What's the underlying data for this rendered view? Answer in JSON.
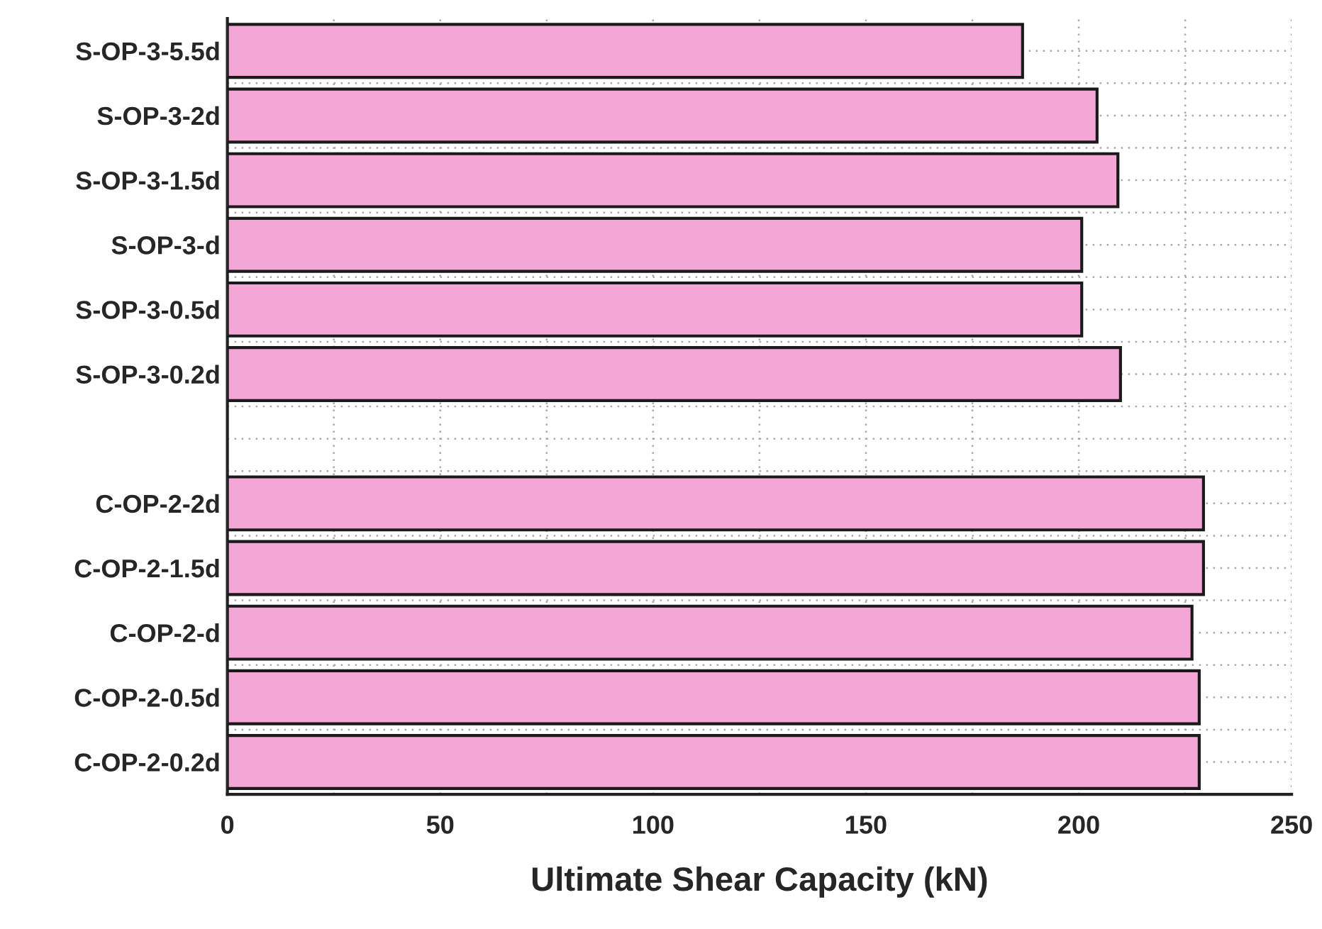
{
  "chart_data": {
    "type": "bar",
    "orientation": "horizontal",
    "xlabel": "Ultimate Shear Capacity (kN)",
    "categories": [
      "S-OP-3-5.5d",
      "S-OP-3-2d",
      "S-OP-3-1.5d",
      "S-OP-3-d",
      "S-OP-3-0.5d",
      "S-OP-3-0.2d",
      null,
      "C-OP-2-2d",
      "C-OP-2-1.5d",
      "C-OP-2-d",
      "C-OP-2-0.5d",
      "C-OP-2-0.2d"
    ],
    "values": [
      186.8,
      204.3,
      209.2,
      200.7,
      200.7,
      209.8,
      null,
      229.3,
      229.3,
      226.6,
      228.3,
      228.3
    ],
    "color": "#f4a6d7",
    "xlim": [
      0,
      250
    ],
    "xticks": [
      0,
      {
        "value": 25,
        "label": null
      },
      50,
      {
        "value": 75,
        "label": null
      },
      100,
      {
        "value": 125,
        "label": null
      },
      150,
      {
        "value": 175,
        "label": null
      },
      200,
      {
        "value": 225,
        "label": null
      },
      250
    ],
    "grid": true
  }
}
